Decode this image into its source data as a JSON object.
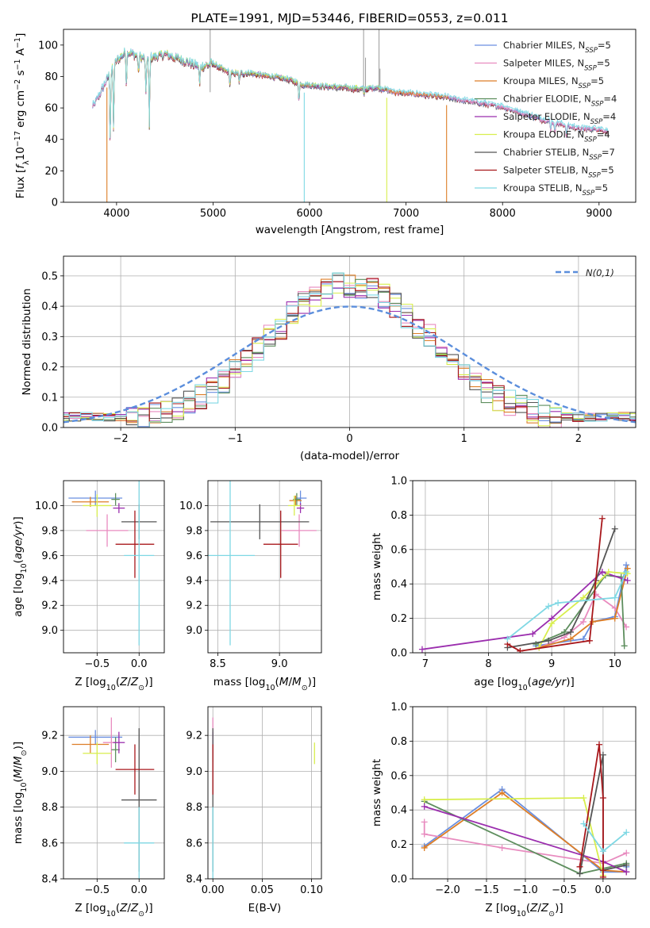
{
  "colors": {
    "chab_miles": "#6a8fe0",
    "salp_miles": "#e88bbf",
    "krou_miles": "#dd7e27",
    "chab_elodie": "#5e8e5e",
    "salp_elodie": "#9b2eae",
    "krou_elodie": "#d8ee4e",
    "chab_stelib": "#555555",
    "salp_stelib": "#a8171b",
    "krou_stelib": "#7fd8e4",
    "grid": "#b0b0b0",
    "normal_curve": "#5b8edc"
  },
  "models": [
    {
      "key": "chab_miles",
      "label": "Chabrier MILES, N_SSP=5",
      "prefix": "Chabrier MILES, N",
      "sub": "SSP",
      "suffix": "=5"
    },
    {
      "key": "salp_miles",
      "label": "Salpeter MILES, N_SSP=5",
      "prefix": "Salpeter MILES, N",
      "sub": "SSP",
      "suffix": "=5"
    },
    {
      "key": "krou_miles",
      "label": "Kroupa MILES, N_SSP=5",
      "prefix": "Kroupa MILES, N",
      "sub": "SSP",
      "suffix": "=5"
    },
    {
      "key": "chab_elodie",
      "label": "Chabrier ELODIE, N_SSP=4",
      "prefix": "Chabrier ELODIE, N",
      "sub": "SSP",
      "suffix": "=4"
    },
    {
      "key": "salp_elodie",
      "label": "Salpeter ELODIE, N_SSP=4",
      "prefix": "Salpeter ELODIE, N",
      "sub": "SSP",
      "suffix": "=4"
    },
    {
      "key": "krou_elodie",
      "label": "Kroupa ELODIE, N_SSP=4",
      "prefix": "Kroupa ELODIE, N",
      "sub": "SSP",
      "suffix": "=4"
    },
    {
      "key": "chab_stelib",
      "label": "Chabrier STELIB, N_SSP=7",
      "prefix": "Chabrier STELIB, N",
      "sub": "SSP",
      "suffix": "=7"
    },
    {
      "key": "salp_stelib",
      "label": "Salpeter STELIB, N_SSP=5",
      "prefix": "Salpeter STELIB, N",
      "sub": "SSP",
      "suffix": "=5"
    },
    {
      "key": "krou_stelib",
      "label": "Kroupa STELIB, N_SSP=5",
      "prefix": "Kroupa STELIB, N",
      "sub": "SSP",
      "suffix": "=5"
    }
  ],
  "chart_data": [
    {
      "id": "spectrum",
      "type": "line",
      "title": "PLATE=1991, MJD=53446, FIBERID=0553, z=0.011",
      "xlabel": "wavelength [Angstrom, rest frame]",
      "ylabel": "Flux [f_λ 10^-17 erg cm^-2 s^-1 A^-1]",
      "xlim": [
        3450,
        9380
      ],
      "ylim": [
        0,
        110
      ],
      "xticks": [
        4000,
        5000,
        6000,
        7000,
        8000,
        9000
      ],
      "yticks": [
        0,
        20,
        40,
        60,
        80,
        100
      ],
      "legend": "top-right",
      "continuum": [
        [
          3750,
          60
        ],
        [
          3850,
          72
        ],
        [
          3950,
          84
        ],
        [
          4000,
          90
        ],
        [
          4100,
          96
        ],
        [
          4300,
          91
        ],
        [
          4500,
          94
        ],
        [
          4700,
          90
        ],
        [
          4861,
          86
        ],
        [
          5000,
          88
        ],
        [
          5175,
          82
        ],
        [
          5400,
          82
        ],
        [
          5600,
          80
        ],
        [
          5800,
          78
        ],
        [
          5900,
          75
        ],
        [
          6100,
          74
        ],
        [
          6300,
          73
        ],
        [
          6563,
          72
        ],
        [
          6700,
          73
        ],
        [
          6900,
          70
        ],
        [
          7100,
          69
        ],
        [
          7400,
          67
        ],
        [
          7600,
          65
        ],
        [
          7800,
          63
        ],
        [
          8000,
          61
        ],
        [
          8200,
          57
        ],
        [
          8400,
          53
        ],
        [
          8600,
          50
        ],
        [
          8800,
          47
        ],
        [
          9000,
          47
        ],
        [
          9100,
          45
        ]
      ],
      "absorption_lines": [
        [
          3934,
          45
        ],
        [
          3969,
          42
        ],
        [
          4102,
          22
        ],
        [
          4227,
          12
        ],
        [
          4304,
          24
        ],
        [
          4340,
          45
        ],
        [
          4861,
          12
        ],
        [
          5175,
          8
        ],
        [
          5270,
          6
        ],
        [
          5890,
          10
        ],
        [
          6563,
          4
        ],
        [
          8498,
          6
        ],
        [
          8542,
          8
        ],
        [
          8662,
          8
        ]
      ],
      "model_ends": {
        "chab_miles": 9100,
        "salp_miles": 9100,
        "krou_miles": 7430,
        "chab_elodie": 6800,
        "salp_elodie": 6800,
        "krou_elodie": 6800,
        "chab_stelib": 9100,
        "salp_stelib": 9100,
        "krou_stelib": 9100
      },
      "model_starts": {
        "chab_miles": 3750,
        "salp_miles": 3750,
        "krou_miles": 3900,
        "chab_elodie": 3900,
        "salp_elodie": 3900,
        "krou_elodie": 3900,
        "chab_stelib": 3750,
        "salp_stelib": 3750,
        "krou_stelib": 3750
      },
      "drops": [
        {
          "x": 3900,
          "model": "krou_miles"
        },
        {
          "x": 5945,
          "model": "krou_stelib"
        },
        {
          "x": 6800,
          "model": "krou_elodie"
        },
        {
          "x": 7420,
          "model": "krou_miles"
        }
      ],
      "spikes": [
        {
          "x": 4970,
          "y": 110
        },
        {
          "x": 6560,
          "y": 110
        },
        {
          "x": 6580,
          "y": 92
        },
        {
          "x": 6720,
          "y": 110
        },
        {
          "x": 6730,
          "y": 85
        }
      ]
    },
    {
      "id": "residuals",
      "type": "histogram",
      "xlabel": "(data-model)/error",
      "ylabel": "Normed distribution",
      "xlim": [
        -2.5,
        2.5
      ],
      "ylim": [
        0,
        0.565
      ],
      "xticks": [
        -2,
        -1,
        0,
        1,
        2
      ],
      "yticks": [
        0.0,
        0.1,
        0.2,
        0.3,
        0.4,
        0.5
      ],
      "bin_width": 0.1,
      "legend": "top-right",
      "normal_label": "N(0,1)"
    },
    {
      "id": "age_vs_Z",
      "type": "errorbar",
      "xlabel": "Z [log10(Z/Z☉)]",
      "ylabel": "age [log10(age/yr)]",
      "xlim": [
        -0.9,
        0.3
      ],
      "ylim": [
        8.82,
        10.2
      ],
      "xticks": [
        -0.5,
        0.0
      ],
      "xticklabels": [
        "−0.5",
        "0.0"
      ],
      "yticks": [
        9.0,
        9.2,
        9.4,
        9.6,
        9.8,
        10.0
      ],
      "points": [
        {
          "model": "chab_miles",
          "x": -0.52,
          "xerr": 0.32,
          "y": 10.06,
          "yerr": 0.06
        },
        {
          "model": "salp_miles",
          "x": -0.38,
          "xerr": 0.25,
          "y": 9.8,
          "yerr": 0.13
        },
        {
          "model": "krou_miles",
          "x": -0.58,
          "xerr": 0.22,
          "y": 10.03,
          "yerr": 0.04
        },
        {
          "model": "chab_elodie",
          "x": -0.28,
          "xerr": 0.05,
          "y": 10.05,
          "yerr": 0.05
        },
        {
          "model": "salp_elodie",
          "x": -0.24,
          "xerr": 0.07,
          "y": 9.98,
          "yerr": 0.04
        },
        {
          "model": "krou_elodie",
          "x": -0.5,
          "xerr": 0.17,
          "y": 10.0,
          "yerr": 0.09
        },
        {
          "model": "chab_stelib",
          "x": 0.0,
          "xerr": 0.21,
          "y": 9.87,
          "yerr": 0.14
        },
        {
          "model": "salp_stelib",
          "x": -0.05,
          "xerr": 0.23,
          "y": 9.69,
          "yerr": 0.27
        },
        {
          "model": "krou_stelib",
          "x": 0.0,
          "xerr": 0.18,
          "y": 9.6,
          "yerr": 0.72
        }
      ]
    },
    {
      "id": "age_vs_mass",
      "type": "errorbar",
      "xlabel": "mass [log10(M/M☉)]",
      "ylabel": "",
      "xlim": [
        8.42,
        9.34
      ],
      "ylim": [
        8.82,
        10.2
      ],
      "xticks": [
        8.5,
        9.0
      ],
      "xticklabels": [
        "8.5",
        "9.0"
      ],
      "yticks": [
        9.0,
        9.2,
        9.4,
        9.6,
        9.8,
        10.0
      ],
      "points": [
        {
          "model": "chab_miles",
          "x": 9.17,
          "xerr": 0.05,
          "y": 10.06,
          "yerr": 0.06
        },
        {
          "model": "salp_miles",
          "x": 9.16,
          "xerr": 0.14,
          "y": 9.8,
          "yerr": 0.13
        },
        {
          "model": "krou_miles",
          "x": 9.13,
          "xerr": 0.05,
          "y": 10.04,
          "yerr": 0.04
        },
        {
          "model": "chab_elodie",
          "x": 9.14,
          "xerr": 0.03,
          "y": 10.05,
          "yerr": 0.05
        },
        {
          "model": "salp_elodie",
          "x": 9.17,
          "xerr": 0.03,
          "y": 9.98,
          "yerr": 0.04
        },
        {
          "model": "krou_elodie",
          "x": 9.12,
          "xerr": 0.05,
          "y": 10.0,
          "yerr": 0.08
        },
        {
          "model": "chab_stelib",
          "x": 8.84,
          "xerr": 0.4,
          "y": 9.87,
          "yerr": 0.14
        },
        {
          "model": "salp_stelib",
          "x": 9.01,
          "xerr": 0.14,
          "y": 9.69,
          "yerr": 0.27
        },
        {
          "model": "krou_stelib",
          "x": 8.6,
          "xerr": 0.2,
          "y": 9.6,
          "yerr": 0.72
        }
      ]
    },
    {
      "id": "weight_vs_age",
      "type": "line",
      "xlabel": "age [log10(age/yr)]",
      "ylabel": "mass weight",
      "xlim": [
        6.8,
        10.33
      ],
      "ylim": [
        0,
        1
      ],
      "xticks": [
        7,
        8,
        9,
        10
      ],
      "yticks": [
        0.0,
        0.2,
        0.4,
        0.6,
        0.8,
        1.0
      ],
      "series": [
        {
          "model": "chab_miles",
          "x": [
            8.75,
            9.5,
            9.65,
            10.0,
            10.18
          ],
          "y": [
            0.04,
            0.08,
            0.18,
            0.21,
            0.51
          ]
        },
        {
          "model": "salp_miles",
          "x": [
            8.8,
            9.2,
            9.5,
            9.7,
            10.0,
            10.18
          ],
          "y": [
            0.03,
            0.09,
            0.18,
            0.34,
            0.26,
            0.15
          ]
        },
        {
          "model": "krou_miles",
          "x": [
            8.8,
            9.3,
            9.65,
            10.0,
            10.2
          ],
          "y": [
            0.03,
            0.08,
            0.18,
            0.2,
            0.49
          ]
        },
        {
          "model": "chab_elodie",
          "x": [
            8.75,
            9.2,
            9.85,
            10.1,
            10.15
          ],
          "y": [
            0.05,
            0.12,
            0.45,
            0.44,
            0.04
          ]
        },
        {
          "model": "salp_elodie",
          "x": [
            6.95,
            8.7,
            9.0,
            9.8,
            10.2
          ],
          "y": [
            0.02,
            0.11,
            0.2,
            0.47,
            0.42
          ]
        },
        {
          "model": "krou_elodie",
          "x": [
            8.8,
            9.0,
            9.5,
            9.9,
            10.2
          ],
          "y": [
            0.03,
            0.17,
            0.32,
            0.47,
            0.46
          ]
        },
        {
          "model": "chab_stelib",
          "x": [
            8.3,
            8.95,
            9.3,
            9.7,
            10.0
          ],
          "y": [
            0.03,
            0.07,
            0.12,
            0.42,
            0.72
          ]
        },
        {
          "model": "salp_stelib",
          "x": [
            8.3,
            8.5,
            9.6,
            9.8
          ],
          "y": [
            0.05,
            0.01,
            0.07,
            0.78
          ]
        },
        {
          "model": "krou_stelib",
          "x": [
            8.3,
            8.95,
            9.1,
            10.0,
            10.18
          ],
          "y": [
            0.08,
            0.27,
            0.29,
            0.32,
            0.47
          ]
        }
      ]
    },
    {
      "id": "mass_vs_Z",
      "type": "errorbar",
      "xlabel": "Z [log10(Z/Z☉)]",
      "ylabel": "mass [log10(M/M☉)]",
      "xlim": [
        -0.9,
        0.3
      ],
      "ylim": [
        8.4,
        9.36
      ],
      "xticks": [
        -0.5,
        0.0
      ],
      "xticklabels": [
        "−0.5",
        "0.0"
      ],
      "yticks": [
        8.4,
        8.6,
        8.8,
        9.0,
        9.2
      ],
      "points": [
        {
          "model": "chab_miles",
          "x": -0.52,
          "xerr": 0.32,
          "y": 9.19,
          "yerr": 0.04
        },
        {
          "model": "salp_miles",
          "x": -0.33,
          "xerr": 0.1,
          "y": 9.16,
          "yerr": 0.14
        },
        {
          "model": "krou_miles",
          "x": -0.58,
          "xerr": 0.22,
          "y": 9.15,
          "yerr": 0.05
        },
        {
          "model": "chab_elodie",
          "x": -0.28,
          "xerr": 0.05,
          "y": 9.12,
          "yerr": 0.07
        },
        {
          "model": "salp_elodie",
          "x": -0.24,
          "xerr": 0.07,
          "y": 9.16,
          "yerr": 0.06
        },
        {
          "model": "krou_elodie",
          "x": -0.5,
          "xerr": 0.17,
          "y": 9.1,
          "yerr": 0.06
        },
        {
          "model": "chab_stelib",
          "x": 0.0,
          "xerr": 0.21,
          "y": 8.84,
          "yerr": 0.4
        },
        {
          "model": "salp_stelib",
          "x": -0.05,
          "xerr": 0.23,
          "y": 9.01,
          "yerr": 0.14
        },
        {
          "model": "krou_stelib",
          "x": 0.0,
          "xerr": 0.18,
          "y": 8.6,
          "yerr": 0.2
        }
      ]
    },
    {
      "id": "mass_vs_ebv",
      "type": "errorbar",
      "xlabel": "E(B-V)",
      "ylabel": "",
      "xlim": [
        -0.005,
        0.11
      ],
      "ylim": [
        8.4,
        9.36
      ],
      "xticks": [
        0.0,
        0.05,
        0.1
      ],
      "xticklabels": [
        "0.00",
        "0.05",
        "0.10"
      ],
      "yticks": [
        8.4,
        8.6,
        8.8,
        9.0,
        9.2
      ],
      "points": [
        {
          "model": "chab_miles",
          "x": 0.0,
          "xerr": 0.0,
          "y": 9.19,
          "yerr": 0.04
        },
        {
          "model": "salp_miles",
          "x": 0.0,
          "xerr": 0.0,
          "y": 9.16,
          "yerr": 0.14
        },
        {
          "model": "krou_miles",
          "x": 0.0,
          "xerr": 0.0,
          "y": 9.15,
          "yerr": 0.05
        },
        {
          "model": "chab_elodie",
          "x": 0.0,
          "xerr": 0.0,
          "y": 9.12,
          "yerr": 0.07
        },
        {
          "model": "salp_elodie",
          "x": 0.0,
          "xerr": 0.0,
          "y": 9.16,
          "yerr": 0.06
        },
        {
          "model": "krou_elodie",
          "x": 0.103,
          "xerr": 0.0,
          "y": 9.1,
          "yerr": 0.06
        },
        {
          "model": "chab_stelib",
          "x": 0.0,
          "xerr": 0.0,
          "y": 8.84,
          "yerr": 0.4
        },
        {
          "model": "salp_stelib",
          "x": 0.0,
          "xerr": 0.0,
          "y": 9.01,
          "yerr": 0.14
        },
        {
          "model": "krou_stelib",
          "x": 0.0,
          "xerr": 0.0,
          "y": 8.6,
          "yerr": 0.2
        }
      ]
    },
    {
      "id": "weight_vs_Z",
      "type": "line",
      "xlabel": "Z [log10(Z/Z☉)]",
      "ylabel": "mass weight",
      "xlim": [
        -2.45,
        0.42
      ],
      "ylim": [
        0,
        1
      ],
      "xticks": [
        -2.0,
        -1.5,
        -1.0,
        -0.5,
        0.0
      ],
      "xticklabels": [
        "−2.0",
        "−1.5",
        "−1.0",
        "−0.5",
        "0.0"
      ],
      "yticks": [
        0.0,
        0.2,
        0.4,
        0.6,
        0.8,
        1.0
      ],
      "series": [
        {
          "model": "chab_miles",
          "x": [
            -2.3,
            -1.3,
            0.0,
            0.3,
            0.3
          ],
          "y": [
            0.19,
            0.52,
            0.04,
            0.04,
            0.07
          ]
        },
        {
          "model": "salp_miles",
          "x": [
            -2.3,
            -2.3,
            -1.3,
            0.0,
            0.3
          ],
          "y": [
            0.33,
            0.26,
            0.18,
            0.09,
            0.15
          ]
        },
        {
          "model": "krou_miles",
          "x": [
            -2.3,
            -1.3,
            0.0,
            0.3
          ],
          "y": [
            0.18,
            0.5,
            0.05,
            0.04
          ]
        },
        {
          "model": "chab_elodie",
          "x": [
            -2.3,
            -0.3,
            0.3
          ],
          "y": [
            0.45,
            0.03,
            0.09
          ]
        },
        {
          "model": "salp_elodie",
          "x": [
            -2.3,
            0.0,
            0.3
          ],
          "y": [
            0.42,
            0.1,
            0.04
          ]
        },
        {
          "model": "krou_elodie",
          "x": [
            -2.3,
            -0.25,
            0.0
          ],
          "y": [
            0.46,
            0.47,
            0.02
          ]
        },
        {
          "model": "chab_stelib",
          "x": [
            -0.3,
            0.0,
            0.0,
            0.3
          ],
          "y": [
            0.03,
            0.72,
            0.05,
            0.08
          ]
        },
        {
          "model": "salp_stelib",
          "x": [
            -0.3,
            -0.05,
            0.0,
            0.0,
            0.0
          ],
          "y": [
            0.07,
            0.78,
            0.47,
            0.01,
            0.05
          ]
        },
        {
          "model": "krou_stelib",
          "x": [
            -0.25,
            0.0,
            0.3
          ],
          "y": [
            0.32,
            0.16,
            0.27
          ]
        }
      ]
    }
  ]
}
